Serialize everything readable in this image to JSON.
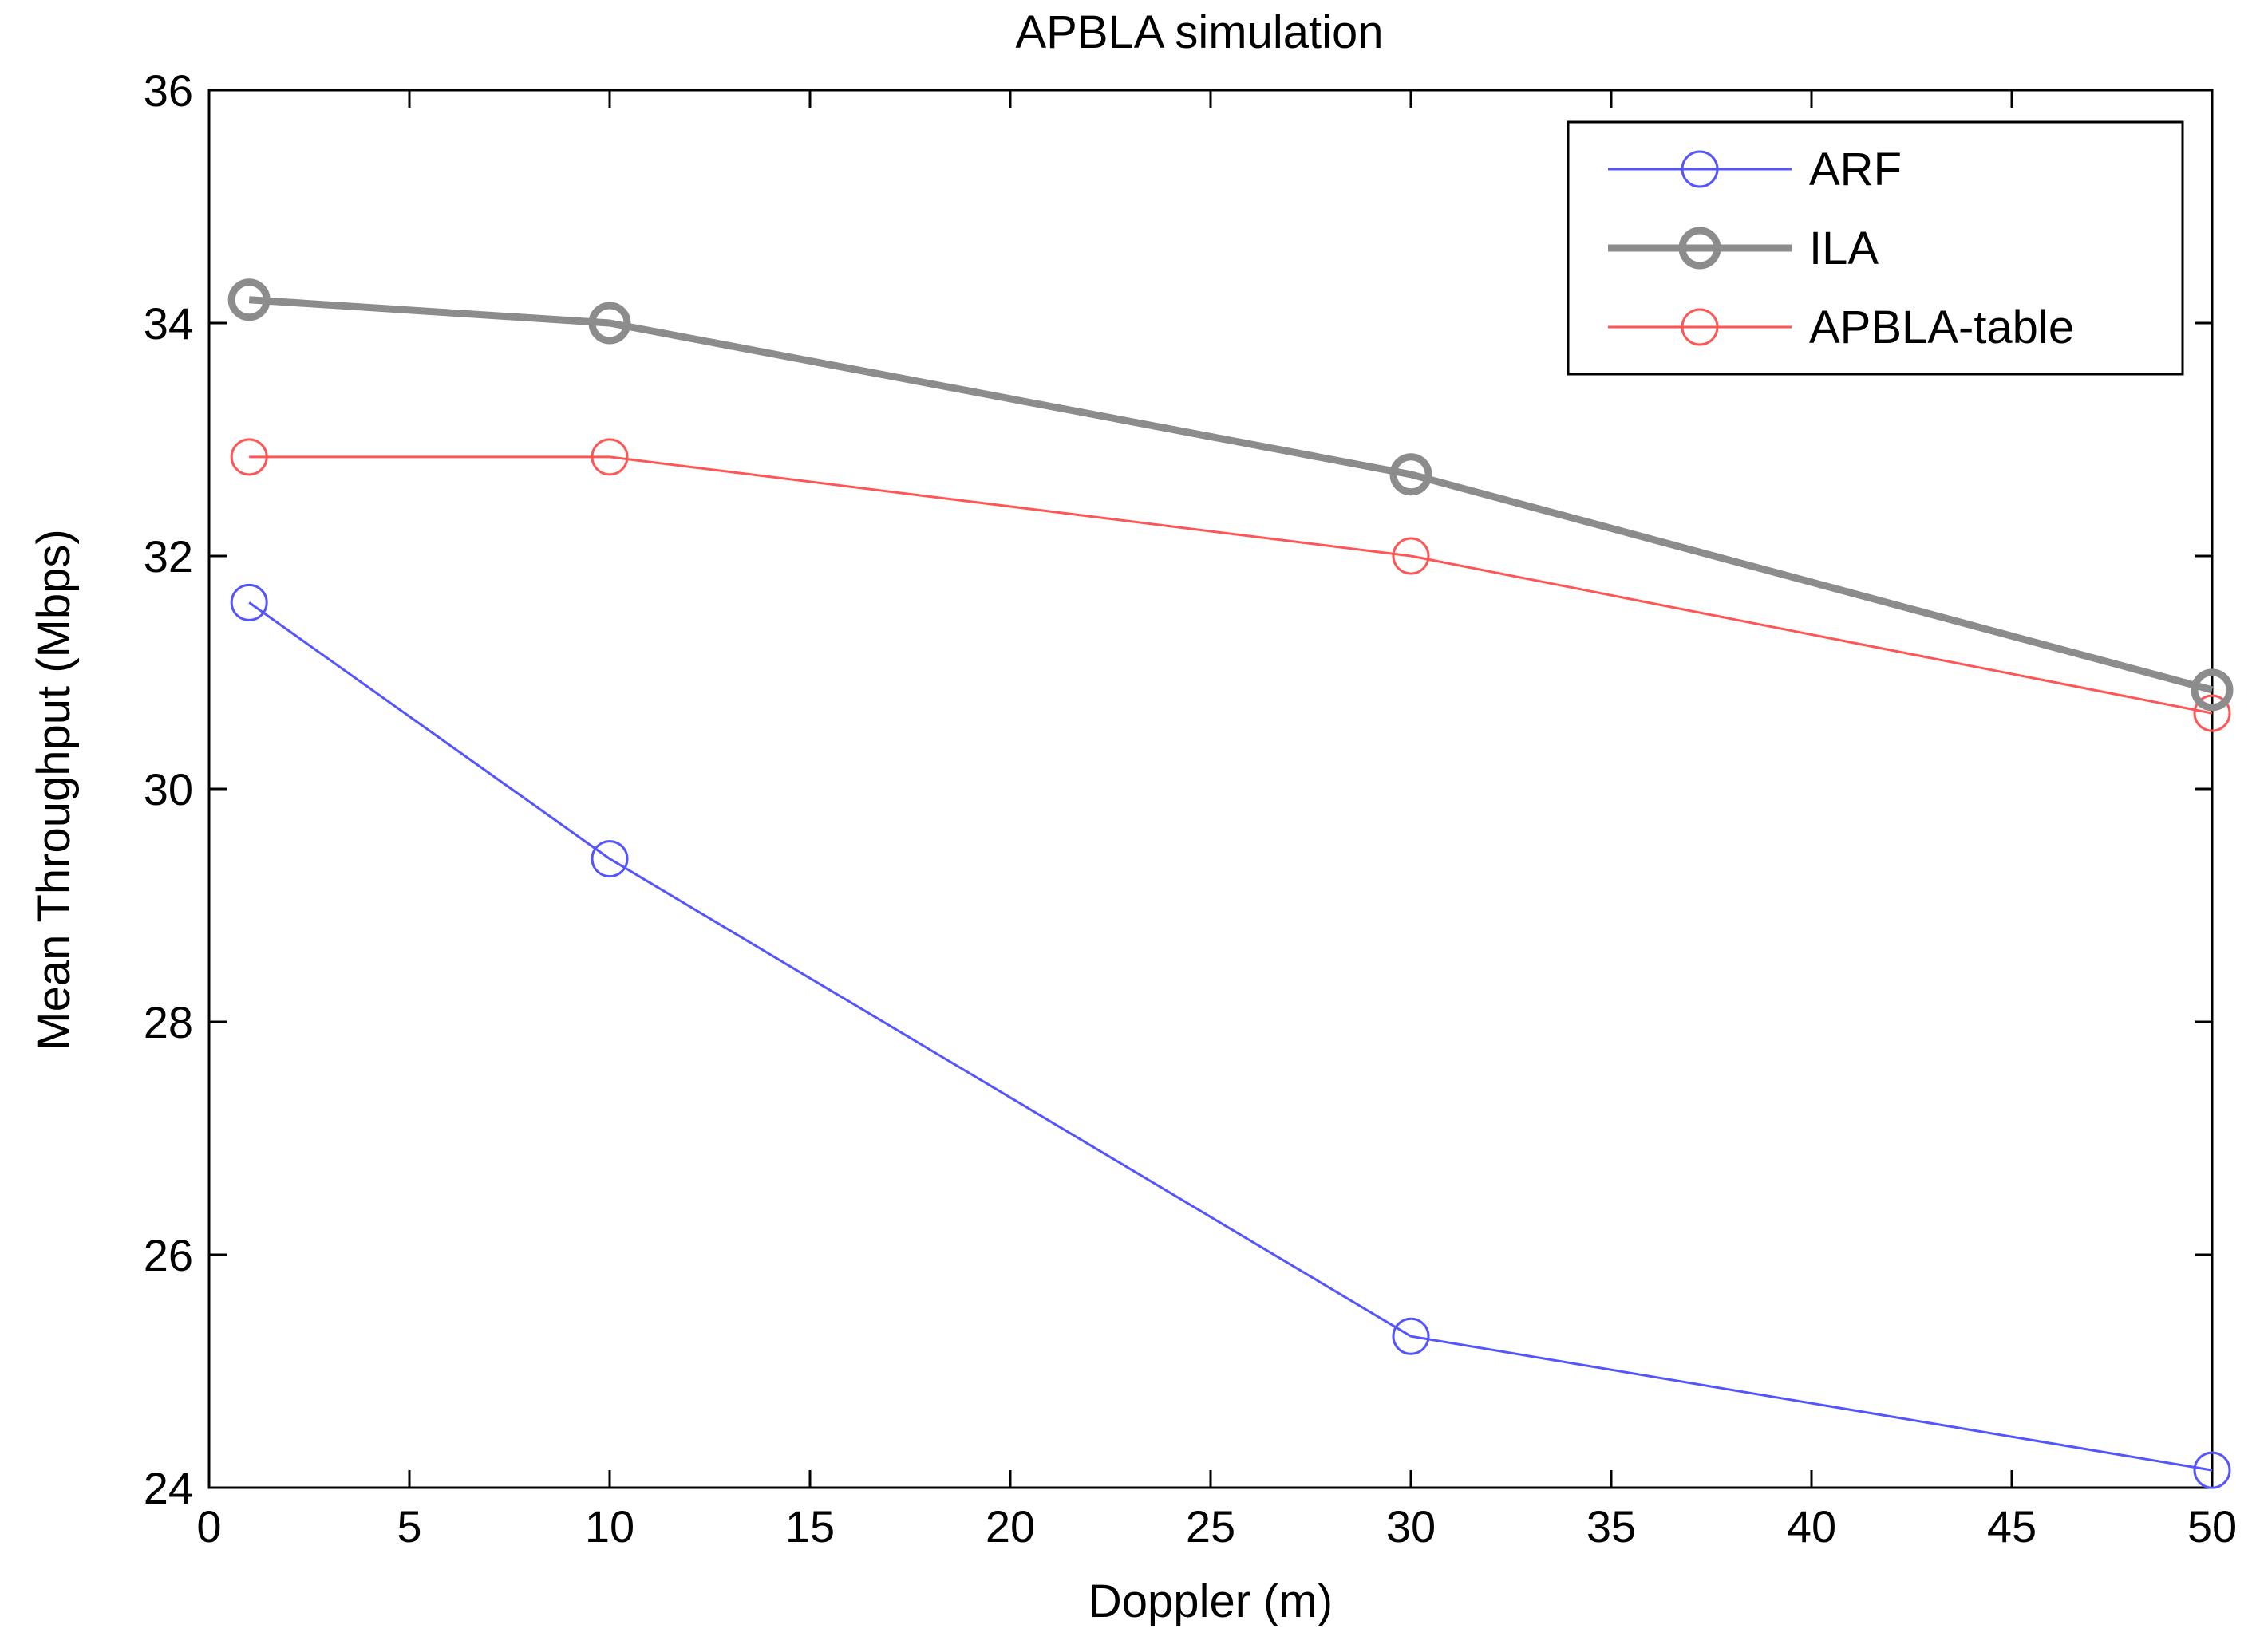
{
  "chart_data": {
    "type": "line",
    "title": "APBLA simulation",
    "xlabel": "Doppler (m)",
    "ylabel": "Mean Throughput  (Mbps)",
    "xlim": [
      0,
      50
    ],
    "ylim": [
      24,
      36
    ],
    "xticks": [
      0,
      5,
      10,
      15,
      20,
      25,
      30,
      35,
      40,
      45,
      50
    ],
    "yticks": [
      24,
      26,
      28,
      30,
      32,
      34,
      36
    ],
    "xtick_labels": [
      "0",
      "5",
      "10",
      "15",
      "20",
      "25",
      "30",
      "35",
      "40",
      "45",
      "50"
    ],
    "ytick_labels": [
      "24",
      "26",
      "28",
      "30",
      "32",
      "34",
      "36"
    ],
    "legend_position": "top-right",
    "x": [
      1,
      10,
      30,
      50
    ],
    "series": [
      {
        "name": "ARF",
        "color": "#5555ff",
        "marker": "circle",
        "values": [
          31.6,
          29.4,
          25.3,
          24.15
        ]
      },
      {
        "name": "ILA",
        "color": "#8c8c8c",
        "marker": "circle",
        "values": [
          34.2,
          34.0,
          32.7,
          30.85
        ]
      },
      {
        "name": "APBLA-table",
        "color": "#ff5555",
        "marker": "circle",
        "values": [
          32.85,
          32.85,
          32.0,
          30.65
        ]
      }
    ]
  }
}
